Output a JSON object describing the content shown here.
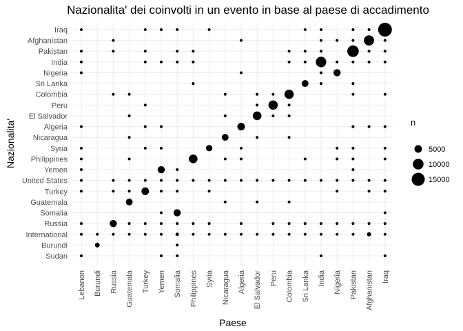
{
  "chart_data": {
    "type": "scatter",
    "title": "Nazionalita' dei coinvolti in un evento in base al paese di accadimento",
    "xlabel": "Paese",
    "ylabel": "Nazionalita'",
    "x_categories": [
      "Lebanon",
      "Burundi",
      "Russia",
      "Guatemala",
      "Turkey",
      "Yemen",
      "Somalia",
      "Philippines",
      "Syria",
      "Nicaragua",
      "Algeria",
      "El Salvador",
      "Peru",
      "Colombia",
      "Sri Lanka",
      "India",
      "Nigeria",
      "Pakistan",
      "Afghanistan",
      "Iraq"
    ],
    "y_categories": [
      "Iraq",
      "Afghanistan",
      "Pakistan",
      "India",
      "Nigeria",
      "Sri Lanka",
      "Colombia",
      "Peru",
      "El Salvador",
      "Algeria",
      "Nicaragua",
      "Syria",
      "Philippines",
      "Yemen",
      "United States",
      "Turkey",
      "Guatemala",
      "Somalia",
      "Russia",
      "International",
      "Burundi",
      "Sudan"
    ],
    "size_variable": "n",
    "legend": {
      "title": "n",
      "values": [
        5000,
        10000,
        15000
      ],
      "labels": [
        "5000",
        "10000",
        "15000"
      ],
      "position": "right"
    },
    "grid": true,
    "point_color": "#000000",
    "points": [
      {
        "x": "Lebanon",
        "y": "Iraq",
        "n": 100
      },
      {
        "x": "Turkey",
        "y": "Iraq",
        "n": 100
      },
      {
        "x": "Yemen",
        "y": "Iraq",
        "n": 100
      },
      {
        "x": "Somalia",
        "y": "Iraq",
        "n": 100
      },
      {
        "x": "Syria",
        "y": "Iraq",
        "n": 100
      },
      {
        "x": "Sri Lanka",
        "y": "Iraq",
        "n": 100
      },
      {
        "x": "India",
        "y": "Iraq",
        "n": 100
      },
      {
        "x": "Pakistan",
        "y": "Iraq",
        "n": 100
      },
      {
        "x": "Afghanistan",
        "y": "Iraq",
        "n": 100
      },
      {
        "x": "Iraq",
        "y": "Iraq",
        "n": 16500
      },
      {
        "x": "Russia",
        "y": "Afghanistan",
        "n": 100
      },
      {
        "x": "Algeria",
        "y": "Afghanistan",
        "n": 100
      },
      {
        "x": "India",
        "y": "Afghanistan",
        "n": 100
      },
      {
        "x": "Nigeria",
        "y": "Afghanistan",
        "n": 100
      },
      {
        "x": "Pakistan",
        "y": "Afghanistan",
        "n": 200
      },
      {
        "x": "Afghanistan",
        "y": "Afghanistan",
        "n": 9000
      },
      {
        "x": "Iraq",
        "y": "Afghanistan",
        "n": 100
      },
      {
        "x": "Lebanon",
        "y": "Pakistan",
        "n": 100
      },
      {
        "x": "Russia",
        "y": "Pakistan",
        "n": 100
      },
      {
        "x": "Turkey",
        "y": "Pakistan",
        "n": 100
      },
      {
        "x": "Somalia",
        "y": "Pakistan",
        "n": 100
      },
      {
        "x": "Philippines",
        "y": "Pakistan",
        "n": 100
      },
      {
        "x": "Colombia",
        "y": "Pakistan",
        "n": 100
      },
      {
        "x": "Sri Lanka",
        "y": "Pakistan",
        "n": 100
      },
      {
        "x": "India",
        "y": "Pakistan",
        "n": 200
      },
      {
        "x": "Pakistan",
        "y": "Pakistan",
        "n": 11500
      },
      {
        "x": "Afghanistan",
        "y": "Pakistan",
        "n": 200
      },
      {
        "x": "Iraq",
        "y": "Pakistan",
        "n": 100
      },
      {
        "x": "Lebanon",
        "y": "India",
        "n": 100
      },
      {
        "x": "Turkey",
        "y": "India",
        "n": 100
      },
      {
        "x": "Yemen",
        "y": "India",
        "n": 100
      },
      {
        "x": "Somalia",
        "y": "India",
        "n": 100
      },
      {
        "x": "Philippines",
        "y": "India",
        "n": 100
      },
      {
        "x": "Colombia",
        "y": "India",
        "n": 100
      },
      {
        "x": "Sri Lanka",
        "y": "India",
        "n": 200
      },
      {
        "x": "India",
        "y": "India",
        "n": 9500
      },
      {
        "x": "Nigeria",
        "y": "India",
        "n": 100
      },
      {
        "x": "Pakistan",
        "y": "India",
        "n": 200
      },
      {
        "x": "Afghanistan",
        "y": "India",
        "n": 100
      },
      {
        "x": "Iraq",
        "y": "India",
        "n": 100
      },
      {
        "x": "Lebanon",
        "y": "Nigeria",
        "n": 100
      },
      {
        "x": "Algeria",
        "y": "Nigeria",
        "n": 100
      },
      {
        "x": "India",
        "y": "Nigeria",
        "n": 100
      },
      {
        "x": "Nigeria",
        "y": "Nigeria",
        "n": 4500
      },
      {
        "x": "Philippines",
        "y": "Sri Lanka",
        "n": 100
      },
      {
        "x": "Sri Lanka",
        "y": "Sri Lanka",
        "n": 4000
      },
      {
        "x": "India",
        "y": "Sri Lanka",
        "n": 100
      },
      {
        "x": "Pakistan",
        "y": "Sri Lanka",
        "n": 100
      },
      {
        "x": "Russia",
        "y": "Colombia",
        "n": 100
      },
      {
        "x": "Guatemala",
        "y": "Colombia",
        "n": 100
      },
      {
        "x": "Nicaragua",
        "y": "Colombia",
        "n": 100
      },
      {
        "x": "El Salvador",
        "y": "Colombia",
        "n": 100
      },
      {
        "x": "Peru",
        "y": "Colombia",
        "n": 100
      },
      {
        "x": "Colombia",
        "y": "Colombia",
        "n": 7500
      },
      {
        "x": "Pakistan",
        "y": "Colombia",
        "n": 100
      },
      {
        "x": "Iraq",
        "y": "Colombia",
        "n": 100
      },
      {
        "x": "Turkey",
        "y": "Peru",
        "n": 100
      },
      {
        "x": "El Salvador",
        "y": "Peru",
        "n": 100
      },
      {
        "x": "Peru",
        "y": "Peru",
        "n": 7500
      },
      {
        "x": "Colombia",
        "y": "Peru",
        "n": 100
      },
      {
        "x": "Guatemala",
        "y": "El Salvador",
        "n": 100
      },
      {
        "x": "Nicaragua",
        "y": "El Salvador",
        "n": 100
      },
      {
        "x": "El Salvador",
        "y": "El Salvador",
        "n": 6500
      },
      {
        "x": "Peru",
        "y": "El Salvador",
        "n": 100
      },
      {
        "x": "Colombia",
        "y": "El Salvador",
        "n": 100
      },
      {
        "x": "Lebanon",
        "y": "Algeria",
        "n": 100
      },
      {
        "x": "Turkey",
        "y": "Algeria",
        "n": 100
      },
      {
        "x": "Yemen",
        "y": "Algeria",
        "n": 100
      },
      {
        "x": "Algeria",
        "y": "Algeria",
        "n": 5000
      },
      {
        "x": "Pakistan",
        "y": "Algeria",
        "n": 100
      },
      {
        "x": "Afghanistan",
        "y": "Algeria",
        "n": 100
      },
      {
        "x": "Iraq",
        "y": "Algeria",
        "n": 100
      },
      {
        "x": "Guatemala",
        "y": "Nicaragua",
        "n": 100
      },
      {
        "x": "Nicaragua",
        "y": "Nicaragua",
        "n": 4000
      },
      {
        "x": "El Salvador",
        "y": "Nicaragua",
        "n": 100
      },
      {
        "x": "Colombia",
        "y": "Nicaragua",
        "n": 100
      },
      {
        "x": "Lebanon",
        "y": "Syria",
        "n": 200
      },
      {
        "x": "Turkey",
        "y": "Syria",
        "n": 100
      },
      {
        "x": "Yemen",
        "y": "Syria",
        "n": 100
      },
      {
        "x": "Syria",
        "y": "Syria",
        "n": 3500
      },
      {
        "x": "Algeria",
        "y": "Syria",
        "n": 100
      },
      {
        "x": "Nigeria",
        "y": "Syria",
        "n": 100
      },
      {
        "x": "Pakistan",
        "y": "Syria",
        "n": 100
      },
      {
        "x": "Iraq",
        "y": "Syria",
        "n": 100
      },
      {
        "x": "Lebanon",
        "y": "Philippines",
        "n": 100
      },
      {
        "x": "Guatemala",
        "y": "Philippines",
        "n": 100
      },
      {
        "x": "Philippines",
        "y": "Philippines",
        "n": 6500
      },
      {
        "x": "Nicaragua",
        "y": "Philippines",
        "n": 100
      },
      {
        "x": "Algeria",
        "y": "Philippines",
        "n": 100
      },
      {
        "x": "Sri Lanka",
        "y": "Philippines",
        "n": 100
      },
      {
        "x": "Nigeria",
        "y": "Philippines",
        "n": 100
      },
      {
        "x": "Pakistan",
        "y": "Philippines",
        "n": 100
      },
      {
        "x": "Iraq",
        "y": "Philippines",
        "n": 100
      },
      {
        "x": "Lebanon",
        "y": "Yemen",
        "n": 100
      },
      {
        "x": "Yemen",
        "y": "Yemen",
        "n": 4500
      },
      {
        "x": "Somalia",
        "y": "Yemen",
        "n": 100
      },
      {
        "x": "Pakistan",
        "y": "Yemen",
        "n": 100
      },
      {
        "x": "Lebanon",
        "y": "United States",
        "n": 200
      },
      {
        "x": "Russia",
        "y": "United States",
        "n": 100
      },
      {
        "x": "Guatemala",
        "y": "United States",
        "n": 200
      },
      {
        "x": "Turkey",
        "y": "United States",
        "n": 200
      },
      {
        "x": "Yemen",
        "y": "United States",
        "n": 200
      },
      {
        "x": "Somalia",
        "y": "United States",
        "n": 200
      },
      {
        "x": "Philippines",
        "y": "United States",
        "n": 200
      },
      {
        "x": "Syria",
        "y": "United States",
        "n": 200
      },
      {
        "x": "Nicaragua",
        "y": "United States",
        "n": 100
      },
      {
        "x": "Algeria",
        "y": "United States",
        "n": 100
      },
      {
        "x": "El Salvador",
        "y": "United States",
        "n": 200
      },
      {
        "x": "Peru",
        "y": "United States",
        "n": 200
      },
      {
        "x": "Colombia",
        "y": "United States",
        "n": 200
      },
      {
        "x": "Sri Lanka",
        "y": "United States",
        "n": 100
      },
      {
        "x": "India",
        "y": "United States",
        "n": 100
      },
      {
        "x": "Nigeria",
        "y": "United States",
        "n": 100
      },
      {
        "x": "Pakistan",
        "y": "United States",
        "n": 200
      },
      {
        "x": "Afghanistan",
        "y": "United States",
        "n": 200
      },
      {
        "x": "Iraq",
        "y": "United States",
        "n": 200
      },
      {
        "x": "Lebanon",
        "y": "Turkey",
        "n": 100
      },
      {
        "x": "Russia",
        "y": "Turkey",
        "n": 100
      },
      {
        "x": "Guatemala",
        "y": "Turkey",
        "n": 100
      },
      {
        "x": "Turkey",
        "y": "Turkey",
        "n": 5000
      },
      {
        "x": "Yemen",
        "y": "Turkey",
        "n": 100
      },
      {
        "x": "Somalia",
        "y": "Turkey",
        "n": 100
      },
      {
        "x": "Syria",
        "y": "Turkey",
        "n": 100
      },
      {
        "x": "Nigeria",
        "y": "Turkey",
        "n": 100
      },
      {
        "x": "Afghanistan",
        "y": "Turkey",
        "n": 100
      },
      {
        "x": "Iraq",
        "y": "Turkey",
        "n": 200
      },
      {
        "x": "Guatemala",
        "y": "Guatemala",
        "n": 4000
      },
      {
        "x": "Nicaragua",
        "y": "Guatemala",
        "n": 100
      },
      {
        "x": "El Salvador",
        "y": "Guatemala",
        "n": 100
      },
      {
        "x": "Colombia",
        "y": "Guatemala",
        "n": 100
      },
      {
        "x": "Yemen",
        "y": "Somalia",
        "n": 100
      },
      {
        "x": "Somalia",
        "y": "Somalia",
        "n": 4500
      },
      {
        "x": "Iraq",
        "y": "Somalia",
        "n": 100
      },
      {
        "x": "Lebanon",
        "y": "Russia",
        "n": 100
      },
      {
        "x": "Russia",
        "y": "Russia",
        "n": 4500
      },
      {
        "x": "Guatemala",
        "y": "Russia",
        "n": 100
      },
      {
        "x": "Turkey",
        "y": "Russia",
        "n": 100
      },
      {
        "x": "Yemen",
        "y": "Russia",
        "n": 100
      },
      {
        "x": "Somalia",
        "y": "Russia",
        "n": 100
      },
      {
        "x": "Philippines",
        "y": "Russia",
        "n": 100
      },
      {
        "x": "Syria",
        "y": "Russia",
        "n": 200
      },
      {
        "x": "Algeria",
        "y": "Russia",
        "n": 100
      },
      {
        "x": "Peru",
        "y": "Russia",
        "n": 100
      },
      {
        "x": "Colombia",
        "y": "Russia",
        "n": 100
      },
      {
        "x": "Sri Lanka",
        "y": "Russia",
        "n": 100
      },
      {
        "x": "India",
        "y": "Russia",
        "n": 100
      },
      {
        "x": "Nigeria",
        "y": "Russia",
        "n": 100
      },
      {
        "x": "Pakistan",
        "y": "Russia",
        "n": 100
      },
      {
        "x": "Afghanistan",
        "y": "Russia",
        "n": 100
      },
      {
        "x": "Iraq",
        "y": "Russia",
        "n": 100
      },
      {
        "x": "Lebanon",
        "y": "International",
        "n": 200
      },
      {
        "x": "Burundi",
        "y": "International",
        "n": 100
      },
      {
        "x": "Russia",
        "y": "International",
        "n": 100
      },
      {
        "x": "Guatemala",
        "y": "International",
        "n": 100
      },
      {
        "x": "Turkey",
        "y": "International",
        "n": 100
      },
      {
        "x": "Yemen",
        "y": "International",
        "n": 100
      },
      {
        "x": "Somalia",
        "y": "International",
        "n": 1000
      },
      {
        "x": "Philippines",
        "y": "International",
        "n": 100
      },
      {
        "x": "Syria",
        "y": "International",
        "n": 100
      },
      {
        "x": "Nicaragua",
        "y": "International",
        "n": 100
      },
      {
        "x": "Algeria",
        "y": "International",
        "n": 100
      },
      {
        "x": "El Salvador",
        "y": "International",
        "n": 100
      },
      {
        "x": "Peru",
        "y": "International",
        "n": 100
      },
      {
        "x": "Colombia",
        "y": "International",
        "n": 100
      },
      {
        "x": "Sri Lanka",
        "y": "International",
        "n": 100
      },
      {
        "x": "India",
        "y": "International",
        "n": 200
      },
      {
        "x": "Nigeria",
        "y": "International",
        "n": 100
      },
      {
        "x": "Pakistan",
        "y": "International",
        "n": 200
      },
      {
        "x": "Afghanistan",
        "y": "International",
        "n": 1500
      },
      {
        "x": "Iraq",
        "y": "International",
        "n": 200
      },
      {
        "x": "Burundi",
        "y": "Burundi",
        "n": 2000
      },
      {
        "x": "Somalia",
        "y": "Burundi",
        "n": 100
      },
      {
        "x": "Lebanon",
        "y": "Sudan",
        "n": 100
      },
      {
        "x": "Yemen",
        "y": "Sudan",
        "n": 100
      },
      {
        "x": "Somalia",
        "y": "Sudan",
        "n": 100
      },
      {
        "x": "India",
        "y": "Sudan",
        "n": 100
      },
      {
        "x": "Iraq",
        "y": "Sudan",
        "n": 100
      }
    ]
  }
}
